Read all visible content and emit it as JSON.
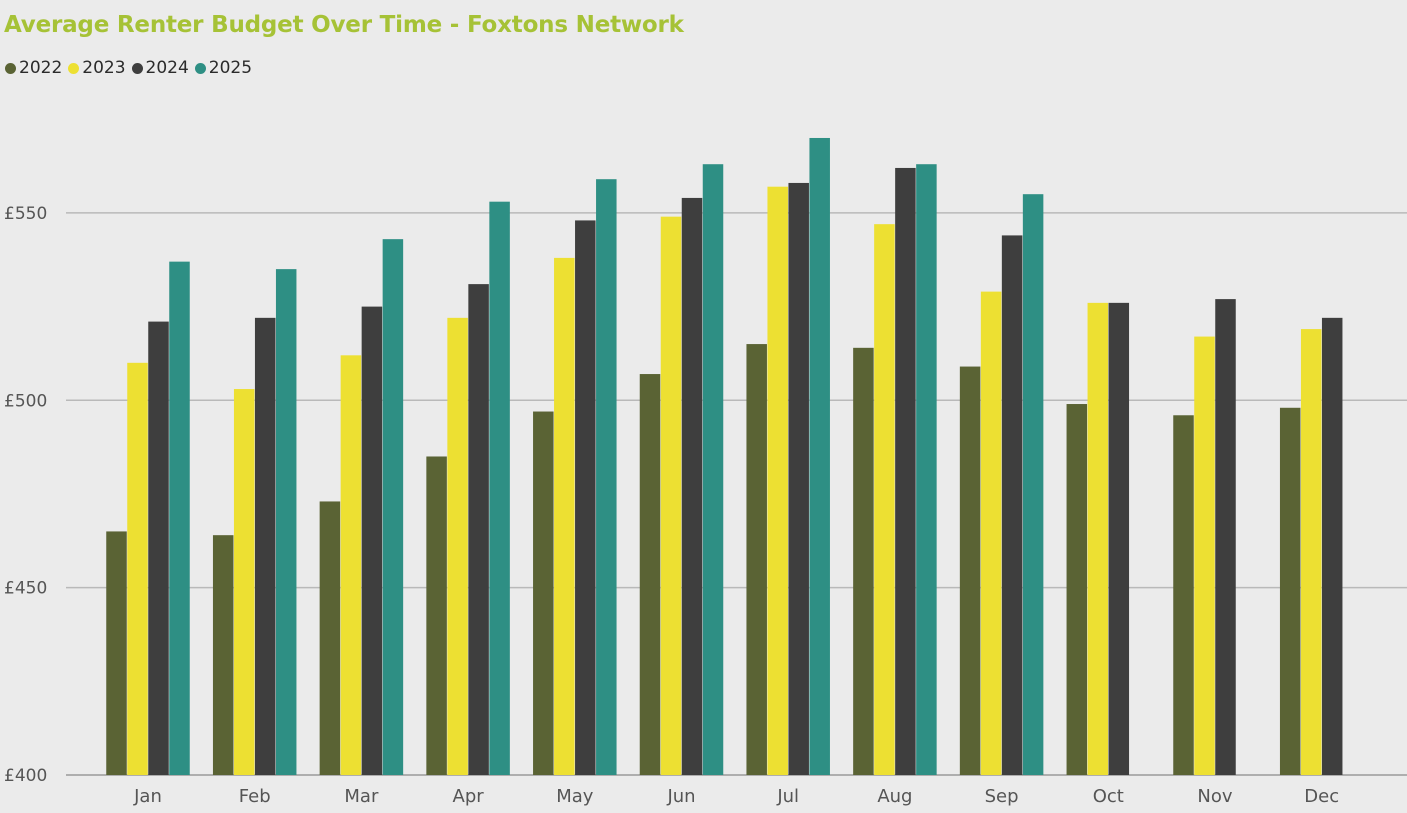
{
  "chart_data": {
    "type": "bar",
    "title": "Average Renter Budget Over Time - Foxtons Network",
    "xlabel": "",
    "ylabel": "",
    "categories": [
      "Jan",
      "Feb",
      "Mar",
      "Apr",
      "May",
      "Jun",
      "Jul",
      "Aug",
      "Sep",
      "Oct",
      "Nov",
      "Dec"
    ],
    "series": [
      {
        "name": "2022",
        "color": "#5a6334",
        "values": [
          465,
          464,
          473,
          485,
          497,
          507,
          515,
          514,
          509,
          499,
          496,
          498
        ]
      },
      {
        "name": "2023",
        "color": "#ede032",
        "values": [
          510,
          503,
          512,
          522,
          538,
          549,
          557,
          547,
          529,
          526,
          517,
          519
        ]
      },
      {
        "name": "2024",
        "color": "#3e3e3e",
        "values": [
          521,
          522,
          525,
          531,
          548,
          554,
          558,
          562,
          544,
          526,
          527,
          522
        ]
      },
      {
        "name": "2025",
        "color": "#2e8f84",
        "values": [
          537,
          535,
          543,
          553,
          559,
          563,
          570,
          563,
          555,
          null,
          null,
          null
        ]
      }
    ],
    "y_ticks": [
      {
        "value": 400,
        "label": "£400"
      },
      {
        "value": 450,
        "label": "£450"
      },
      {
        "value": 500,
        "label": "£500"
      },
      {
        "value": 550,
        "label": "£550"
      }
    ],
    "ylim": [
      400,
      578
    ],
    "grid": true,
    "legend_position": "top-left"
  }
}
